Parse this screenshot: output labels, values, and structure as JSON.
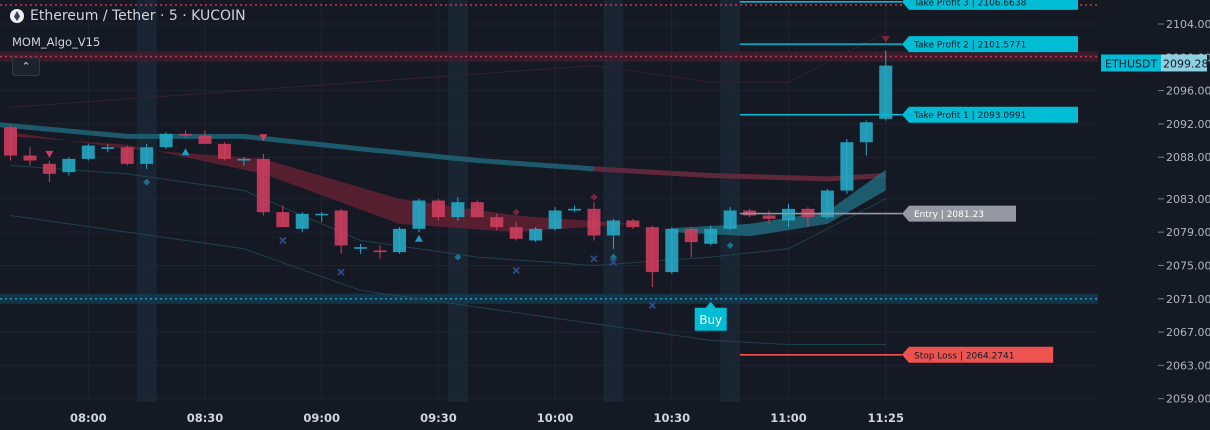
{
  "header": {
    "title": "Ethereum / Tether · 5 · KUCOIN",
    "indicator": "MOM_Algo_V15",
    "collapse_icon": "chevron-up-icon"
  },
  "colors": {
    "background": "#151924",
    "up": "#26a7c4",
    "down": "#cc3d5e",
    "cyan_label": "#00bcd4",
    "red_label": "#ef5350",
    "grey_label": "#9598a1",
    "resistance": "#c8344f",
    "support": "#1d9cc5"
  },
  "chart_data": {
    "type": "candlestick",
    "symbol": "ETHUSDT",
    "last_price": "2099.28",
    "y_ticks": [
      "2104.00",
      "2100.00",
      "2096.00",
      "2092.00",
      "2088.00",
      "2083.00",
      "2079.00",
      "2075.00",
      "2071.00",
      "2067.00",
      "2063.00",
      "2059.00"
    ],
    "x_ticks": [
      "08:00",
      "08:30",
      "09:00",
      "09:30",
      "10:00",
      "10:30",
      "11:00",
      "11:25"
    ],
    "ylim": [
      2058.6,
      2106.4
    ],
    "candles": [
      {
        "o": 2091.6,
        "h": 2091.8,
        "l": 2087.6,
        "c": 2088.2
      },
      {
        "o": 2088.2,
        "h": 2089.2,
        "l": 2087.0,
        "c": 2087.6
      },
      {
        "o": 2087.2,
        "h": 2087.6,
        "l": 2085.0,
        "c": 2086.0
      },
      {
        "o": 2086.2,
        "h": 2088.0,
        "l": 2085.8,
        "c": 2087.8
      },
      {
        "o": 2087.8,
        "h": 2089.6,
        "l": 2087.6,
        "c": 2089.4
      },
      {
        "o": 2089.0,
        "h": 2089.6,
        "l": 2088.6,
        "c": 2089.2
      },
      {
        "o": 2089.2,
        "h": 2089.4,
        "l": 2087.0,
        "c": 2087.2
      },
      {
        "o": 2087.2,
        "h": 2089.6,
        "l": 2086.6,
        "c": 2089.2
      },
      {
        "o": 2089.2,
        "h": 2091.0,
        "l": 2089.0,
        "c": 2090.8
      },
      {
        "o": 2090.8,
        "h": 2091.2,
        "l": 2090.4,
        "c": 2090.6
      },
      {
        "o": 2090.6,
        "h": 2091.2,
        "l": 2089.8,
        "c": 2089.6
      },
      {
        "o": 2089.6,
        "h": 2089.8,
        "l": 2087.6,
        "c": 2087.8
      },
      {
        "o": 2087.6,
        "h": 2088.0,
        "l": 2087.0,
        "c": 2087.8
      },
      {
        "o": 2087.8,
        "h": 2088.4,
        "l": 2081.0,
        "c": 2081.4
      },
      {
        "o": 2081.4,
        "h": 2082.2,
        "l": 2079.6,
        "c": 2079.6
      },
      {
        "o": 2079.4,
        "h": 2081.4,
        "l": 2079.0,
        "c": 2081.2
      },
      {
        "o": 2081.2,
        "h": 2081.4,
        "l": 2080.2,
        "c": 2081.2
      },
      {
        "o": 2081.6,
        "h": 2081.8,
        "l": 2076.4,
        "c": 2077.4
      },
      {
        "o": 2077.0,
        "h": 2077.6,
        "l": 2076.4,
        "c": 2077.2
      },
      {
        "o": 2076.8,
        "h": 2077.4,
        "l": 2075.8,
        "c": 2076.6
      },
      {
        "o": 2076.6,
        "h": 2079.6,
        "l": 2076.4,
        "c": 2079.4
      },
      {
        "o": 2079.4,
        "h": 2083.0,
        "l": 2079.0,
        "c": 2082.8
      },
      {
        "o": 2082.8,
        "h": 2083.0,
        "l": 2080.4,
        "c": 2080.8
      },
      {
        "o": 2080.8,
        "h": 2083.2,
        "l": 2080.4,
        "c": 2082.6
      },
      {
        "o": 2082.6,
        "h": 2082.8,
        "l": 2080.8,
        "c": 2080.8
      },
      {
        "o": 2080.8,
        "h": 2081.2,
        "l": 2079.2,
        "c": 2079.6
      },
      {
        "o": 2079.6,
        "h": 2080.2,
        "l": 2078.0,
        "c": 2078.2
      },
      {
        "o": 2078.0,
        "h": 2079.6,
        "l": 2077.8,
        "c": 2079.4
      },
      {
        "o": 2079.4,
        "h": 2082.0,
        "l": 2079.2,
        "c": 2081.6
      },
      {
        "o": 2081.6,
        "h": 2082.2,
        "l": 2081.4,
        "c": 2081.8
      },
      {
        "o": 2081.8,
        "h": 2082.6,
        "l": 2078.0,
        "c": 2078.6
      },
      {
        "o": 2078.6,
        "h": 2080.6,
        "l": 2077.0,
        "c": 2080.4
      },
      {
        "o": 2080.4,
        "h": 2080.6,
        "l": 2079.4,
        "c": 2079.6
      },
      {
        "o": 2079.6,
        "h": 2079.8,
        "l": 2072.4,
        "c": 2074.2
      },
      {
        "o": 2074.2,
        "h": 2079.6,
        "l": 2074.0,
        "c": 2079.4
      },
      {
        "o": 2079.4,
        "h": 2079.6,
        "l": 2076.0,
        "c": 2077.8
      },
      {
        "o": 2077.6,
        "h": 2079.8,
        "l": 2077.4,
        "c": 2079.4
      },
      {
        "o": 2079.4,
        "h": 2082.0,
        "l": 2079.2,
        "c": 2081.6
      },
      {
        "o": 2081.6,
        "h": 2081.8,
        "l": 2080.8,
        "c": 2081.0
      },
      {
        "o": 2081.0,
        "h": 2081.6,
        "l": 2080.0,
        "c": 2080.6
      },
      {
        "o": 2080.4,
        "h": 2082.4,
        "l": 2079.6,
        "c": 2081.8
      },
      {
        "o": 2081.8,
        "h": 2082.0,
        "l": 2079.6,
        "c": 2080.8
      },
      {
        "o": 2080.8,
        "h": 2084.2,
        "l": 2080.6,
        "c": 2084.0
      },
      {
        "o": 2084.0,
        "h": 2090.2,
        "l": 2083.6,
        "c": 2089.8
      },
      {
        "o": 2089.8,
        "h": 2092.4,
        "l": 2088.2,
        "c": 2092.2
      },
      {
        "o": 2092.6,
        "h": 2100.8,
        "l": 2092.4,
        "c": 2099.0
      }
    ],
    "levels": [
      {
        "label": "Take Profit 3 | 2106.6638",
        "price": 2106.66,
        "style": "cyan"
      },
      {
        "label": "Take Profit 2 | 2101.5771",
        "price": 2101.58,
        "style": "cyan"
      },
      {
        "label": "Take Profit 1 | 2093.0991",
        "price": 2093.1,
        "style": "cyan"
      },
      {
        "label": "Entry | 2081.23",
        "price": 2081.23,
        "style": "grey"
      },
      {
        "label": "Stop Loss | 2064.2741",
        "price": 2064.27,
        "style": "red"
      }
    ],
    "resistance_level": 2100.1,
    "support_level": 2071.0,
    "buy_label": "Buy",
    "buy_time": "10:40"
  }
}
